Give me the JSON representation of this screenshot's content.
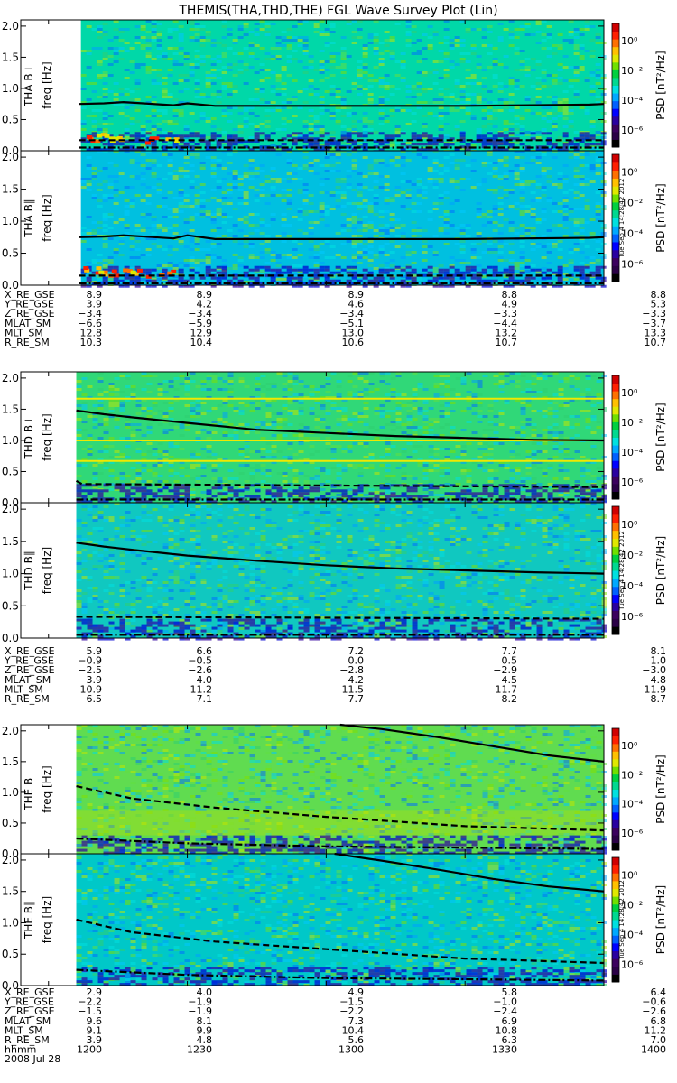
{
  "title": "THEMIS(THA,THD,THE) FGL Wave Survey Plot (Lin)",
  "stamp": "Tue Sep  4 14:28:42 2012",
  "colorbar": {
    "label": "PSD [nT²/Hz]",
    "ticks": [
      "10⁰",
      "10⁻²",
      "10⁻⁴",
      "10⁻⁶"
    ],
    "colors": [
      "#000000",
      "#2a0046",
      "#3b005e",
      "#2a00a0",
      "#0000ff",
      "#0060ff",
      "#00a8ff",
      "#00e0e0",
      "#00d890",
      "#00d040",
      "#70e000",
      "#e0e800",
      "#ffc000",
      "#ff7000",
      "#ff2000",
      "#d00000"
    ]
  },
  "chart_data": [
    {
      "type": "heatmap",
      "probe": "THA",
      "panels": [
        {
          "ylabel": "THA B⊥",
          "ylabel2": "freq [Hz]",
          "yticks": [
            "0.0",
            "0.5",
            "1.0",
            "1.5",
            "2.0"
          ],
          "ylim": [
            0,
            2.1
          ],
          "data_start": "12:07",
          "background": "#00d8a8",
          "hot_band": true,
          "solid_line": [
            [
              12.11,
              0.75
            ],
            [
              12.2,
              0.76
            ],
            [
              12.27,
              0.78
            ],
            [
              12.45,
              0.73
            ],
            [
              12.5,
              0.76
            ],
            [
              12.6,
              0.72
            ],
            [
              13.0,
              0.72
            ],
            [
              13.5,
              0.72
            ],
            [
              13.95,
              0.74
            ],
            [
              14.0,
              0.75
            ]
          ],
          "dashed_line": [
            [
              12.11,
              0.17
            ],
            [
              14.0,
              0.17
            ]
          ],
          "dashdot_line": [
            [
              12.11,
              0.05
            ],
            [
              14.0,
              0.05
            ]
          ]
        },
        {
          "ylabel": "THA B∥",
          "ylabel2": "freq [Hz]",
          "yticks": [
            "0.0",
            "0.5",
            "1.0",
            "1.5",
            "2.0"
          ],
          "ylim": [
            0,
            2.1
          ],
          "data_start": "12:07",
          "background": "#00c0e0",
          "hot_band": true,
          "solid_line": [
            [
              12.11,
              0.75
            ],
            [
              12.2,
              0.76
            ],
            [
              12.27,
              0.78
            ],
            [
              12.45,
              0.73
            ],
            [
              12.5,
              0.78
            ],
            [
              12.6,
              0.72
            ],
            [
              13.0,
              0.72
            ],
            [
              13.5,
              0.72
            ],
            [
              13.95,
              0.74
            ],
            [
              14.0,
              0.75
            ]
          ],
          "dashed_line": [
            [
              12.11,
              0.15
            ],
            [
              14.0,
              0.15
            ]
          ],
          "dashdot_line": [
            [
              12.11,
              0.03
            ],
            [
              14.0,
              0.03
            ]
          ]
        }
      ],
      "orbit_rows": [
        {
          "label": "X_RE_GSE",
          "values": [
            "8.9",
            "8.9",
            "8.9",
            "8.8",
            "8.8"
          ]
        },
        {
          "label": "Y_RE_GSE",
          "values": [
            "3.9",
            "4.2",
            "4.6",
            "4.9",
            "5.3"
          ]
        },
        {
          "label": "Z_RE_GSE",
          "values": [
            "−3.4",
            "−3.4",
            "−3.4",
            "−3.3",
            "−3.3"
          ]
        },
        {
          "label": "MLAT_SM",
          "values": [
            "−6.6",
            "−5.9",
            "−5.1",
            "−4.4",
            "−3.7"
          ]
        },
        {
          "label": "MLT_SM",
          "values": [
            "12.8",
            "12.9",
            "13.0",
            "13.2",
            "13.3"
          ]
        },
        {
          "label": "R_RE_SM",
          "values": [
            "10.3",
            "10.4",
            "10.6",
            "10.7",
            "10.7"
          ]
        }
      ]
    },
    {
      "type": "heatmap",
      "probe": "THD",
      "panels": [
        {
          "ylabel": "THD B⊥",
          "ylabel2": "freq [Hz]",
          "yticks": [
            "0.0",
            "0.5",
            "1.0",
            "1.5",
            "2.0"
          ],
          "ylim": [
            0,
            2.1
          ],
          "data_start": "12:06",
          "background": "#30d878",
          "hot_band": false,
          "solid_line": [
            [
              12.1,
              1.48
            ],
            [
              12.2,
              1.42
            ],
            [
              12.3,
              1.37
            ],
            [
              12.5,
              1.28
            ],
            [
              12.75,
              1.17
            ],
            [
              13.0,
              1.12
            ],
            [
              13.25,
              1.07
            ],
            [
              13.5,
              1.04
            ],
            [
              13.75,
              1.01
            ],
            [
              14.0,
              1.0
            ]
          ],
          "dashed_line": [
            [
              12.1,
              0.35
            ],
            [
              12.12,
              0.3
            ],
            [
              14.0,
              0.25
            ]
          ],
          "dashdot_line": [
            [
              12.1,
              0.05
            ],
            [
              14.0,
              0.05
            ]
          ]
        },
        {
          "ylabel": "THD B∥",
          "ylabel2": "freq [Hz]",
          "yticks": [
            "0.0",
            "0.5",
            "1.0",
            "1.5",
            "2.0"
          ],
          "ylim": [
            0,
            2.1
          ],
          "data_start": "12:06",
          "background": "#10c8c0",
          "hot_band": false,
          "solid_line": [
            [
              12.1,
              1.48
            ],
            [
              12.2,
              1.42
            ],
            [
              12.3,
              1.37
            ],
            [
              12.5,
              1.28
            ],
            [
              12.75,
              1.2
            ],
            [
              13.0,
              1.13
            ],
            [
              13.25,
              1.08
            ],
            [
              13.5,
              1.05
            ],
            [
              13.75,
              1.02
            ],
            [
              14.0,
              1.0
            ]
          ],
          "dashed_line": [
            [
              12.1,
              0.33
            ],
            [
              14.0,
              0.3
            ]
          ],
          "dashdot_line": [
            [
              12.1,
              0.05
            ],
            [
              14.0,
              0.05
            ]
          ]
        }
      ],
      "orbit_rows": [
        {
          "label": "X_RE_GSE",
          "values": [
            "5.9",
            "6.6",
            "7.2",
            "7.7",
            "8.1"
          ]
        },
        {
          "label": "Y_RE_GSE",
          "values": [
            "−0.9",
            "−0.5",
            "0.0",
            "0.5",
            "1.0"
          ]
        },
        {
          "label": "Z_RE_GSE",
          "values": [
            "−2.5",
            "−2.6",
            "−2.8",
            "−2.9",
            "−3.0"
          ]
        },
        {
          "label": "MLAT_SM",
          "values": [
            "3.9",
            "4.0",
            "4.2",
            "4.5",
            "4.8"
          ]
        },
        {
          "label": "MLT_SM",
          "values": [
            "10.9",
            "11.2",
            "11.5",
            "11.7",
            "11.9"
          ]
        },
        {
          "label": "R_RE_SM",
          "values": [
            "6.5",
            "7.1",
            "7.7",
            "8.2",
            "8.7"
          ]
        }
      ]
    },
    {
      "type": "heatmap",
      "probe": "THE",
      "panels": [
        {
          "ylabel": "THE B⊥",
          "ylabel2": "freq [Hz]",
          "yticks": [
            "0.0",
            "0.5",
            "1.0",
            "1.5",
            "2.0"
          ],
          "ylim": [
            0,
            2.1
          ],
          "data_start": "12:06",
          "background": "#60dc50",
          "hot_band": false,
          "solid_line": [
            [
              13.05,
              2.1
            ],
            [
              13.2,
              2.03
            ],
            [
              13.4,
              1.9
            ],
            [
              13.6,
              1.75
            ],
            [
              13.8,
              1.6
            ],
            [
              14.0,
              1.5
            ]
          ],
          "dashed_line": [
            [
              12.1,
              1.1
            ],
            [
              12.3,
              0.9
            ],
            [
              12.6,
              0.75
            ],
            [
              13.0,
              0.6
            ],
            [
              13.5,
              0.45
            ],
            [
              14.0,
              0.38
            ]
          ],
          "dashdot_line": [
            [
              12.1,
              0.25
            ],
            [
              12.5,
              0.17
            ],
            [
              13.0,
              0.12
            ],
            [
              13.5,
              0.1
            ],
            [
              14.0,
              0.08
            ]
          ]
        },
        {
          "ylabel": "THE B∥",
          "ylabel2": "freq [Hz]",
          "yticks": [
            "0.0",
            "0.5",
            "1.0",
            "1.5",
            "2.0"
          ],
          "ylim": [
            0,
            2.1
          ],
          "data_start": "12:06",
          "background": "#00c8c8",
          "hot_band": false,
          "solid_line": [
            [
              13.03,
              2.1
            ],
            [
              13.2,
              1.99
            ],
            [
              13.4,
              1.85
            ],
            [
              13.6,
              1.7
            ],
            [
              13.8,
              1.58
            ],
            [
              14.0,
              1.5
            ]
          ],
          "dashed_line": [
            [
              12.1,
              1.05
            ],
            [
              12.3,
              0.85
            ],
            [
              12.6,
              0.7
            ],
            [
              13.0,
              0.58
            ],
            [
              13.5,
              0.43
            ],
            [
              14.0,
              0.36
            ]
          ],
          "dashdot_line": [
            [
              12.1,
              0.25
            ],
            [
              12.5,
              0.17
            ],
            [
              13.0,
              0.12
            ],
            [
              13.5,
              0.1
            ],
            [
              14.0,
              0.08
            ]
          ]
        }
      ],
      "orbit_rows": [
        {
          "label": "X_RE_GSE",
          "values": [
            "2.9",
            "4.0",
            "4.9",
            "5.8",
            "6.4"
          ]
        },
        {
          "label": "Y_RE_GSE",
          "values": [
            "−2.2",
            "−1.9",
            "−1.5",
            "−1.0",
            "−0.6"
          ]
        },
        {
          "label": "Z_RE_GSE",
          "values": [
            "−1.5",
            "−1.9",
            "−2.2",
            "−2.4",
            "−2.6"
          ]
        },
        {
          "label": "MLAT_SM",
          "values": [
            "9.6",
            "8.1",
            "7.3",
            "6.9",
            "6.8"
          ]
        },
        {
          "label": "MLT_SM",
          "values": [
            "9.1",
            "9.9",
            "10.4",
            "10.8",
            "11.2"
          ]
        },
        {
          "label": "R_RE_SM",
          "values": [
            "3.9",
            "4.8",
            "5.6",
            "6.3",
            "7.0"
          ]
        },
        {
          "label": "hhmm",
          "values": [
            "1200",
            "1230",
            "1300",
            "1330",
            "1400"
          ]
        }
      ],
      "date": "2008 Jul 28"
    }
  ]
}
